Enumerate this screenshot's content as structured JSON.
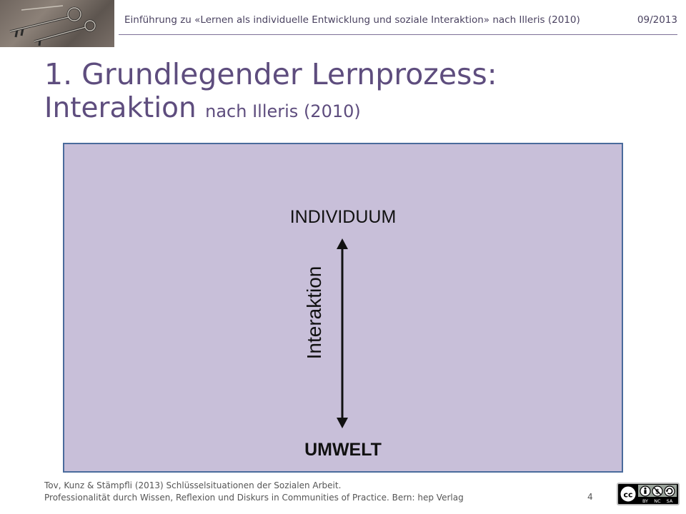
{
  "header": {
    "subtitle": "Einführung zu «Lernen als individuelle Entwicklung und soziale Interaktion» nach Illeris (2010)",
    "date": "09/2013",
    "image_icon": "old-keys-photo"
  },
  "slide": {
    "title_line1": "1. Grundlegender Lernprozess:",
    "title_line2": "Interaktion",
    "title_suffix": "nach Illeris (2010)"
  },
  "diagram": {
    "top_label": "INDIVIDUUM",
    "bottom_label": "UMWELT",
    "vertical_label": "Interaktion",
    "background_color": "#c8bfd9",
    "border_color": "#4a6b9c",
    "arrow_icon": "double-headed-arrow"
  },
  "footer": {
    "line1": "Tov, Kunz & Stämpfli (2013) Schlüsselsituationen der Sozialen Arbeit.",
    "line2": "Professionalität durch Wissen, Reflexion und Diskurs in Communities of Practice. Bern: hep Verlag",
    "page_number": "4"
  },
  "license": {
    "badge_icon": "cc-by-nc-sa-badge",
    "labels": [
      "BY",
      "NC",
      "SA"
    ]
  },
  "colors": {
    "title": "#5e4d7e",
    "header_text": "#4a4260",
    "header_rule": "#7d6f96"
  }
}
